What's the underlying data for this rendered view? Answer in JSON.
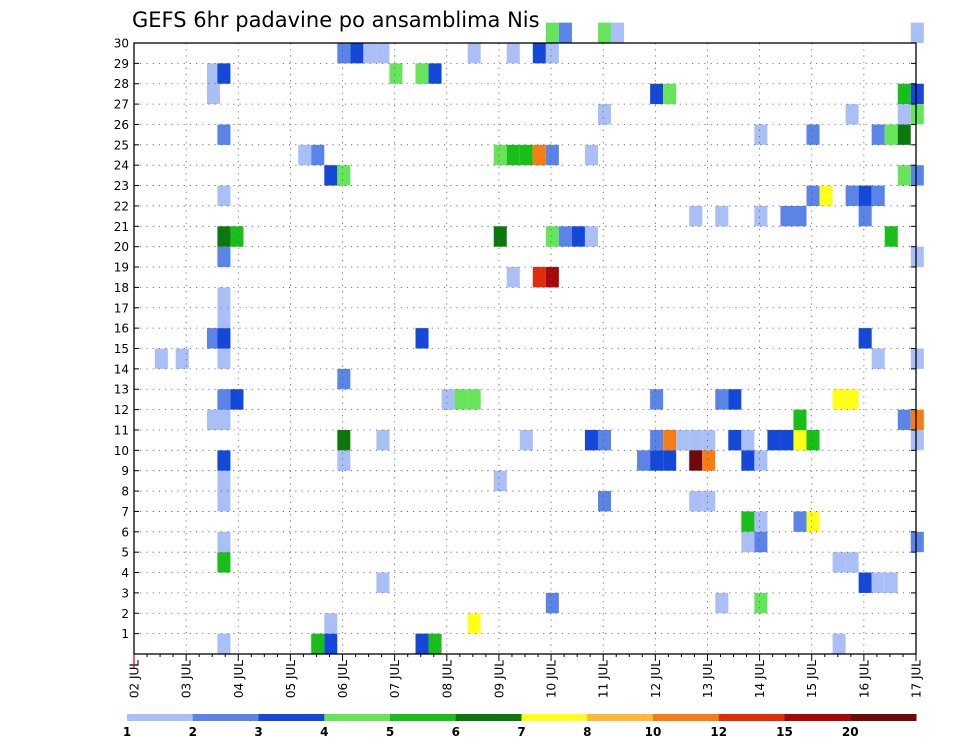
{
  "chart_data": {
    "type": "heatmap",
    "title": "GEFS 6hr padavine po ansamblima Nis",
    "x_labels": [
      "02 JUL",
      "03 JUL",
      "04 JUL",
      "05 JUL",
      "06 JUL",
      "07 JUL",
      "08 JUL",
      "09 JUL",
      "10 JUL",
      "11 JUL",
      "12 JUL",
      "13 JUL",
      "14 JUL",
      "15 JUL",
      "16 JUL",
      "17 JUL"
    ],
    "y_labels": [
      "1",
      "2",
      "3",
      "4",
      "5",
      "6",
      "7",
      "8",
      "9",
      "10",
      "11",
      "12",
      "13",
      "14",
      "15",
      "16",
      "17",
      "18",
      "19",
      "20",
      "21",
      "22",
      "23",
      "24",
      "25",
      "26",
      "27",
      "28",
      "29",
      "30"
    ],
    "xlim_days": [
      0,
      15
    ],
    "ylim": [
      0,
      30
    ],
    "grid": true,
    "colorbar": {
      "levels": [
        "1",
        "2",
        "3",
        "4",
        "5",
        "6",
        "7",
        "8",
        "10",
        "12",
        "15",
        "20"
      ],
      "colors": [
        "#aabff5",
        "#5a84e8",
        "#1448d8",
        "#66e55a",
        "#19bf19",
        "#0c780c",
        "#ffff1a",
        "#ffb833",
        "#f57d14",
        "#e02b0c",
        "#a80808",
        "#6e0a0a"
      ]
    },
    "cells": [
      [
        2.4,
        14,
        0
      ],
      [
        2.8,
        14,
        0
      ],
      [
        3.6,
        0,
        0
      ],
      [
        3.6,
        4,
        4
      ],
      [
        3.6,
        5,
        0
      ],
      [
        3.6,
        7,
        0
      ],
      [
        3.6,
        8,
        0
      ],
      [
        3.6,
        9,
        2
      ],
      [
        3.4,
        11,
        0
      ],
      [
        3.6,
        11,
        0
      ],
      [
        3.6,
        12,
        1
      ],
      [
        3.85,
        12,
        2
      ],
      [
        3.6,
        14,
        0
      ],
      [
        3.4,
        15,
        1
      ],
      [
        3.6,
        15,
        2
      ],
      [
        3.6,
        16,
        0
      ],
      [
        3.6,
        17,
        0
      ],
      [
        3.6,
        19,
        1
      ],
      [
        3.6,
        20,
        5
      ],
      [
        3.85,
        20,
        4
      ],
      [
        3.6,
        22,
        0
      ],
      [
        3.6,
        25,
        1
      ],
      [
        3.4,
        27,
        0
      ],
      [
        3.4,
        28,
        0
      ],
      [
        3.6,
        28,
        2
      ],
      [
        5.15,
        24,
        0
      ],
      [
        5.4,
        24,
        1
      ],
      [
        5.4,
        0,
        4
      ],
      [
        5.65,
        0,
        2
      ],
      [
        5.65,
        1,
        0
      ],
      [
        5.65,
        23,
        2
      ],
      [
        5.9,
        23,
        3
      ],
      [
        5.9,
        9,
        0
      ],
      [
        5.9,
        10,
        5
      ],
      [
        5.9,
        13,
        1
      ],
      [
        5.9,
        29,
        1
      ],
      [
        6.15,
        29,
        2
      ],
      [
        6.4,
        29,
        0
      ],
      [
        6.65,
        29,
        0
      ],
      [
        6.65,
        3,
        0
      ],
      [
        6.65,
        10,
        0
      ],
      [
        6.9,
        28,
        3
      ],
      [
        7.4,
        28,
        3
      ],
      [
        7.65,
        28,
        2
      ],
      [
        7.4,
        0,
        2
      ],
      [
        7.65,
        0,
        4
      ],
      [
        7.4,
        15,
        2
      ],
      [
        7.9,
        12,
        0
      ],
      [
        8.15,
        12,
        3
      ],
      [
        8.4,
        12,
        3
      ],
      [
        8.4,
        1,
        6
      ],
      [
        8.4,
        29,
        0
      ],
      [
        8.9,
        8,
        0
      ],
      [
        8.9,
        20,
        5
      ],
      [
        8.9,
        24,
        3
      ],
      [
        9.15,
        24,
        4
      ],
      [
        9.4,
        24,
        4
      ],
      [
        9.15,
        18,
        0
      ],
      [
        9.15,
        29,
        0
      ],
      [
        9.4,
        10,
        0
      ],
      [
        9.65,
        18,
        9
      ],
      [
        9.9,
        18,
        10
      ],
      [
        9.65,
        24,
        8
      ],
      [
        9.9,
        24,
        1
      ],
      [
        9.65,
        29,
        2
      ],
      [
        9.9,
        29,
        0
      ],
      [
        9.9,
        2,
        1
      ],
      [
        9.9,
        20,
        3
      ],
      [
        10.15,
        20,
        1
      ],
      [
        10.4,
        20,
        2
      ],
      [
        10.65,
        20,
        0
      ],
      [
        9.9,
        30,
        3
      ],
      [
        10.15,
        30,
        1
      ],
      [
        10.65,
        10,
        2
      ],
      [
        10.9,
        10,
        1
      ],
      [
        10.65,
        24,
        0
      ],
      [
        10.9,
        7,
        1
      ],
      [
        10.9,
        26,
        0
      ],
      [
        10.9,
        30,
        3
      ],
      [
        11.15,
        30,
        0
      ],
      [
        11.65,
        9,
        1
      ],
      [
        11.9,
        9,
        2
      ],
      [
        11.9,
        10,
        1
      ],
      [
        11.9,
        12,
        1
      ],
      [
        12.15,
        9,
        2
      ],
      [
        12.15,
        10,
        8
      ],
      [
        11.9,
        27,
        2
      ],
      [
        12.15,
        27,
        3
      ],
      [
        12.4,
        10,
        0
      ],
      [
        12.65,
        10,
        0
      ],
      [
        12.9,
        10,
        0
      ],
      [
        12.65,
        7,
        0
      ],
      [
        12.9,
        7,
        0
      ],
      [
        12.65,
        9,
        11
      ],
      [
        12.9,
        9,
        8
      ],
      [
        12.65,
        21,
        0
      ],
      [
        13.15,
        2,
        0
      ],
      [
        13.15,
        12,
        1
      ],
      [
        13.15,
        21,
        0
      ],
      [
        13.4,
        10,
        2
      ],
      [
        13.4,
        12,
        2
      ],
      [
        13.65,
        9,
        2
      ],
      [
        13.9,
        9,
        0
      ],
      [
        13.65,
        10,
        0
      ],
      [
        13.65,
        6,
        4
      ],
      [
        13.9,
        6,
        0
      ],
      [
        13.65,
        5,
        0
      ],
      [
        13.9,
        5,
        1
      ],
      [
        13.9,
        2,
        3
      ],
      [
        13.9,
        21,
        0
      ],
      [
        13.9,
        25,
        0
      ],
      [
        14.15,
        10,
        2
      ],
      [
        14.4,
        10,
        2
      ],
      [
        14.65,
        10,
        6
      ],
      [
        14.9,
        10,
        4
      ],
      [
        14.65,
        11,
        4
      ],
      [
        14.65,
        6,
        1
      ],
      [
        14.9,
        6,
        6
      ],
      [
        14.4,
        21,
        1
      ],
      [
        14.65,
        21,
        1
      ],
      [
        14.9,
        22,
        1
      ],
      [
        15.15,
        22,
        6
      ],
      [
        14.9,
        25,
        1
      ],
      [
        15.4,
        4,
        0
      ],
      [
        15.65,
        4,
        0
      ],
      [
        15.4,
        0,
        0
      ],
      [
        15.4,
        12,
        6
      ],
      [
        15.65,
        12,
        6
      ],
      [
        15.65,
        22,
        1
      ],
      [
        15.9,
        22,
        2
      ],
      [
        15.9,
        21,
        1
      ],
      [
        15.65,
        26,
        0
      ],
      [
        15.9,
        3,
        2
      ],
      [
        16.15,
        3,
        0
      ],
      [
        16.4,
        3,
        0
      ],
      [
        15.9,
        15,
        2
      ],
      [
        16.15,
        14,
        0
      ],
      [
        16.15,
        22,
        1
      ],
      [
        16.15,
        25,
        1
      ],
      [
        16.4,
        20,
        4
      ],
      [
        16.4,
        25,
        3
      ],
      [
        16.65,
        25,
        5
      ],
      [
        16.65,
        23,
        3
      ],
      [
        16.9,
        23,
        1
      ],
      [
        16.65,
        11,
        1
      ],
      [
        16.9,
        11,
        8
      ],
      [
        16.9,
        10,
        0
      ],
      [
        16.9,
        14,
        0
      ],
      [
        16.9,
        19,
        0
      ],
      [
        16.9,
        5,
        1
      ],
      [
        16.65,
        27,
        4
      ],
      [
        16.9,
        27,
        2
      ],
      [
        16.65,
        26,
        0
      ],
      [
        16.9,
        26,
        3
      ],
      [
        16.9,
        30,
        0
      ]
    ]
  }
}
